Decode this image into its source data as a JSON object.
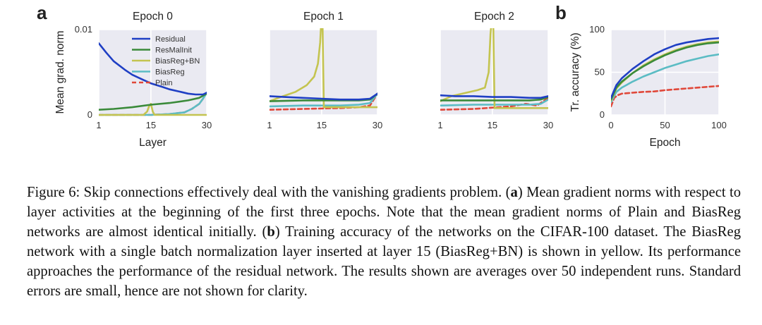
{
  "panel_labels": {
    "a": "a",
    "b": "b"
  },
  "colors": {
    "Residual": "#1f3fc4",
    "ResMalInit": "#3a8a3a",
    "BiasReg+BN": "#c4c450",
    "BiasReg": "#5bbcc4",
    "Plain": "#e0483a"
  },
  "chart_data": [
    {
      "type": "line",
      "title": "Epoch 0",
      "xlabel": "Layer",
      "ylabel": "Mean grad. norm",
      "xticks": [
        "1",
        "15",
        "30"
      ],
      "yticks": [
        "0",
        "0.01"
      ],
      "xlim": [
        1,
        30
      ],
      "ylim": [
        0,
        0.01
      ],
      "grid": true,
      "legend": "upper-center",
      "series": [
        {
          "name": "Residual",
          "style": "solid",
          "x": [
            1,
            3,
            5,
            8,
            10,
            13,
            15,
            18,
            20,
            23,
            25,
            27,
            29,
            30
          ],
          "y": [
            0.0084,
            0.0073,
            0.0063,
            0.0053,
            0.0047,
            0.0041,
            0.0037,
            0.0033,
            0.003,
            0.0027,
            0.0025,
            0.0024,
            0.0024,
            0.0026
          ]
        },
        {
          "name": "ResMalInit",
          "style": "solid",
          "x": [
            1,
            5,
            10,
            15,
            20,
            25,
            28,
            30
          ],
          "y": [
            0.0006,
            0.0007,
            0.0009,
            0.0012,
            0.0014,
            0.0017,
            0.002,
            0.0025
          ]
        },
        {
          "name": "BiasReg+BN",
          "style": "solid",
          "x": [
            1,
            13,
            14,
            14.5,
            15,
            15.5,
            16,
            30
          ],
          "y": [
            0,
            0,
            0.0004,
            0.001,
            0.0013,
            0.0004,
            0,
            0
          ]
        },
        {
          "name": "BiasReg",
          "style": "solid",
          "x": [
            1,
            10,
            15,
            20,
            24,
            26,
            28,
            29,
            30
          ],
          "y": [
            0,
            0,
            0,
            0.0001,
            0.0003,
            0.0007,
            0.0013,
            0.0019,
            0.0026
          ]
        },
        {
          "name": "Plain",
          "style": "dashed",
          "x": [
            1,
            10,
            15,
            20,
            24,
            26,
            28,
            29,
            30
          ],
          "y": [
            0,
            0,
            0,
            0.0001,
            0.0003,
            0.0007,
            0.0013,
            0.0019,
            0.0026
          ]
        }
      ]
    },
    {
      "type": "line",
      "title": "Epoch 1",
      "xticks": [
        "1",
        "15",
        "30"
      ],
      "xlim": [
        1,
        30
      ],
      "ylim": [
        0,
        0.01
      ],
      "grid": true,
      "series": [
        {
          "name": "Residual",
          "style": "solid",
          "x": [
            1,
            5,
            10,
            15,
            20,
            25,
            28,
            30
          ],
          "y": [
            0.0022,
            0.0021,
            0.002,
            0.0019,
            0.0018,
            0.0018,
            0.0019,
            0.0025
          ]
        },
        {
          "name": "ResMalInit",
          "style": "solid",
          "x": [
            1,
            10,
            20,
            25,
            28,
            30
          ],
          "y": [
            0.0016,
            0.0017,
            0.0017,
            0.0017,
            0.0018,
            0.0025
          ]
        },
        {
          "name": "BiasReg+BN",
          "style": "solid",
          "x": [
            1,
            4,
            8,
            11,
            13,
            14,
            14.6,
            15,
            15.2,
            15.4,
            15.6,
            30
          ],
          "y": [
            0.0016,
            0.0021,
            0.0027,
            0.0035,
            0.0045,
            0.006,
            0.0085,
            0.012,
            0.012,
            0.006,
            0.0009,
            0.0009
          ]
        },
        {
          "name": "BiasReg",
          "style": "solid",
          "x": [
            1,
            10,
            20,
            25,
            28,
            30
          ],
          "y": [
            0.001,
            0.0011,
            0.0011,
            0.0012,
            0.0014,
            0.0025
          ]
        },
        {
          "name": "Plain",
          "style": "dashed",
          "x": [
            1,
            10,
            20,
            25,
            28,
            30
          ],
          "y": [
            0.0006,
            0.0007,
            0.0008,
            0.0009,
            0.0011,
            0.0025
          ]
        }
      ]
    },
    {
      "type": "line",
      "title": "Epoch 2",
      "xticks": [
        "1",
        "15",
        "30"
      ],
      "xlim": [
        1,
        30
      ],
      "ylim": [
        0,
        0.01
      ],
      "grid": true,
      "series": [
        {
          "name": "Residual",
          "style": "solid",
          "x": [
            1,
            5,
            10,
            15,
            20,
            25,
            28,
            30
          ],
          "y": [
            0.0023,
            0.0022,
            0.0022,
            0.0021,
            0.0021,
            0.002,
            0.002,
            0.0022
          ]
        },
        {
          "name": "ResMalInit",
          "style": "solid",
          "x": [
            1,
            10,
            20,
            25,
            28,
            30
          ],
          "y": [
            0.0017,
            0.0017,
            0.0017,
            0.0017,
            0.0018,
            0.0021
          ]
        },
        {
          "name": "BiasReg+BN",
          "style": "solid",
          "x": [
            1,
            4,
            8,
            11,
            13,
            14,
            14.5,
            15,
            15.2,
            15.4,
            15.6,
            30
          ],
          "y": [
            0.0016,
            0.0022,
            0.0026,
            0.0029,
            0.0032,
            0.005,
            0.0095,
            0.012,
            0.012,
            0.006,
            0.0008,
            0.0008
          ]
        },
        {
          "name": "BiasReg",
          "style": "solid",
          "x": [
            1,
            10,
            20,
            25,
            28,
            30
          ],
          "y": [
            0.0011,
            0.0012,
            0.0012,
            0.0012,
            0.0013,
            0.0018
          ]
        },
        {
          "name": "Plain",
          "style": "dashed",
          "x": [
            1,
            10,
            20,
            24,
            27,
            30
          ],
          "y": [
            0.0006,
            0.0007,
            0.001,
            0.0013,
            0.0011,
            0.002
          ]
        }
      ]
    },
    {
      "type": "line",
      "xlabel": "Epoch",
      "ylabel": "Tr. accuracy (%)",
      "xticks": [
        "0",
        "50",
        "100"
      ],
      "yticks": [
        "0",
        "50",
        "100"
      ],
      "xlim": [
        0,
        100
      ],
      "ylim": [
        0,
        100
      ],
      "grid": true,
      "series": [
        {
          "name": "Residual",
          "style": "solid",
          "x": [
            0,
            5,
            10,
            20,
            30,
            40,
            50,
            60,
            70,
            80,
            90,
            100
          ],
          "y": [
            20,
            35,
            43,
            54,
            63,
            71,
            77,
            82,
            85,
            87,
            89,
            90
          ]
        },
        {
          "name": "ResMalInit",
          "style": "solid",
          "x": [
            0,
            5,
            10,
            20,
            30,
            40,
            50,
            60,
            70,
            80,
            90,
            100
          ],
          "y": [
            18,
            32,
            39,
            49,
            57,
            64,
            70,
            75,
            79,
            82,
            84,
            85
          ]
        },
        {
          "name": "BiasReg+BN",
          "style": "solid",
          "x": [
            0,
            5,
            10,
            20,
            30,
            40,
            50,
            60,
            70,
            80,
            90,
            100
          ],
          "y": [
            17,
            31,
            38,
            49,
            58,
            65,
            71,
            76,
            80,
            83,
            85,
            86
          ]
        },
        {
          "name": "BiasReg",
          "style": "solid",
          "x": [
            0,
            5,
            10,
            20,
            30,
            40,
            50,
            60,
            70,
            80,
            90,
            100
          ],
          "y": [
            15,
            27,
            32,
            39,
            45,
            50,
            55,
            59,
            63,
            66,
            69,
            71
          ]
        },
        {
          "name": "Plain",
          "style": "dashed",
          "x": [
            0,
            3,
            6,
            10,
            20,
            30,
            40,
            50,
            60,
            70,
            80,
            90,
            100
          ],
          "y": [
            10,
            20,
            23,
            25,
            26,
            27,
            27.5,
            29,
            30,
            31,
            32,
            33,
            34
          ]
        }
      ]
    }
  ],
  "caption": {
    "prefix": "Figure 6: Skip connections effectively deal with the vanishing gradients problem. (",
    "label_a": "a",
    "part_a": ") Mean gradient norms with respect to layer activities at the beginning of the first three epochs. Note that the mean gradient norms of Plain and BiasReg networks are almost identical initially. (",
    "label_b": "b",
    "part_b": ") Training accuracy of the networks on the CIFAR-100 dataset. The BiasReg network with a single batch normalization layer inserted at layer 15 (BiasReg+BN) is shown in yellow. Its performance approaches the performance of the residual network. The results shown are averages over 50 independent runs. Standard errors are small, hence are not shown for clarity."
  }
}
